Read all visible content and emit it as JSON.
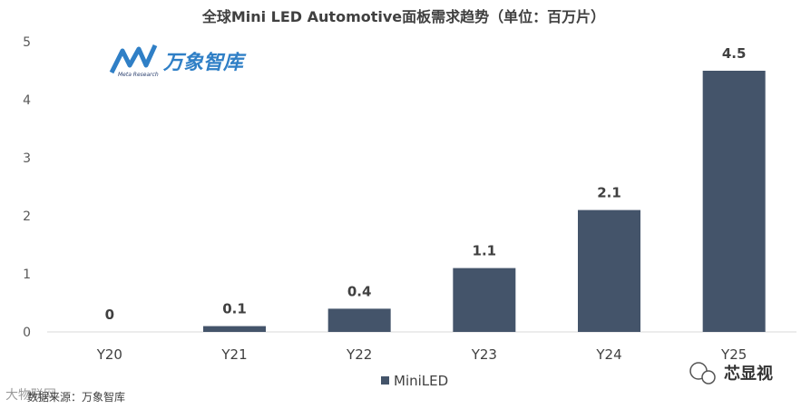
{
  "chart_data": {
    "type": "bar",
    "title": "全球Mini LED Automotive面板需求趋势（单位：百万片）",
    "categories": [
      "Y20",
      "Y21",
      "Y22",
      "Y23",
      "Y24",
      "Y25"
    ],
    "series": [
      {
        "name": "MiniLED",
        "values": [
          0,
          0.1,
          0.4,
          1.1,
          2.1,
          4.5
        ],
        "color": "#44546a"
      }
    ],
    "data_labels": [
      "0",
      "0.1",
      "0.4",
      "1.1",
      "2.1",
      "4.5"
    ],
    "ylim": [
      0,
      5
    ],
    "yticks": [
      "0",
      "1",
      "2",
      "3",
      "4",
      "5"
    ],
    "xlabel": "",
    "ylabel": "",
    "legend_position": "bottom",
    "grid": false
  },
  "logo": {
    "name": "万象智库",
    "sub": "Meta Research"
  },
  "source": "数据来源：万象智库",
  "watermark": {
    "text": "芯显视",
    "corner_text": "大物联网"
  },
  "colors": {
    "bar": "#44546a",
    "logo": "#2f7fc6",
    "axis": "#d9d9d9"
  }
}
